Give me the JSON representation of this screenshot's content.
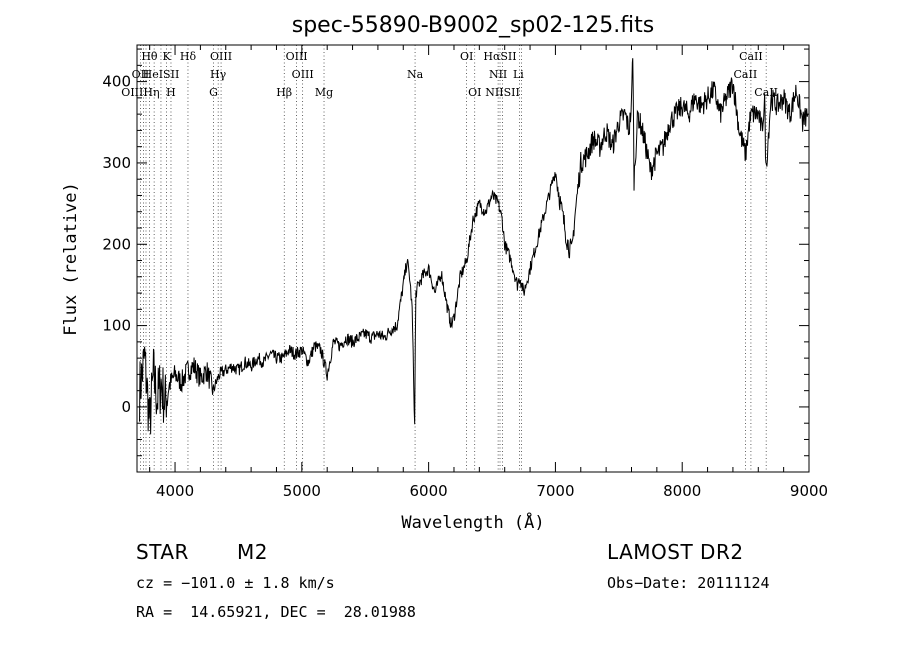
{
  "chart_data": {
    "type": "line",
    "title": "spec-55890-B9002_sp02-125.fits",
    "xlabel": "Wavelength (Å)",
    "ylabel": "Flux (relative)",
    "xlim": [
      3700,
      9000
    ],
    "ylim": [
      -80,
      445
    ],
    "xticks": [
      4000,
      5000,
      6000,
      7000,
      8000,
      9000
    ],
    "yticks": [
      0,
      100,
      200,
      300,
      400
    ],
    "grid": false,
    "series": [
      {
        "color": "#000000",
        "x": [
          3720,
          3760,
          3800,
          3830,
          3860,
          3890,
          3920,
          3950,
          4000,
          4050,
          4100,
          4150,
          4200,
          4250,
          4300,
          4350,
          4400,
          4450,
          4500,
          4550,
          4600,
          4650,
          4700,
          4750,
          4800,
          4850,
          4900,
          4950,
          5000,
          5050,
          5100,
          5150,
          5200,
          5250,
          5300,
          5350,
          5400,
          5450,
          5500,
          5550,
          5600,
          5650,
          5700,
          5750,
          5800,
          5830,
          5850,
          5870,
          5890,
          5895,
          5900,
          5920,
          5950,
          6000,
          6050,
          6100,
          6150,
          6180,
          6200,
          6250,
          6300,
          6350,
          6400,
          6450,
          6500,
          6550,
          6580,
          6600,
          6650,
          6700,
          6720,
          6750,
          6800,
          6850,
          6900,
          6950,
          7000,
          7050,
          7100,
          7130,
          7150,
          7200,
          7250,
          7300,
          7350,
          7400,
          7450,
          7500,
          7550,
          7580,
          7600,
          7610,
          7620,
          7650,
          7700,
          7750,
          7800,
          7850,
          7900,
          7950,
          8000,
          8050,
          8100,
          8150,
          8200,
          8250,
          8300,
          8350,
          8400,
          8450,
          8500,
          8530,
          8550,
          8600,
          8630,
          8650,
          8660,
          8700,
          8750,
          8800,
          8850,
          8900,
          8950,
          8990
        ],
        "y": [
          20,
          60,
          -20,
          40,
          10,
          30,
          5,
          25,
          40,
          30,
          45,
          50,
          35,
          45,
          20,
          40,
          45,
          50,
          45,
          55,
          50,
          60,
          55,
          65,
          60,
          60,
          70,
          65,
          70,
          55,
          75,
          70,
          40,
          80,
          75,
          85,
          80,
          85,
          90,
          85,
          90,
          85,
          95,
          100,
          150,
          180,
          160,
          120,
          -25,
          80,
          140,
          150,
          160,
          170,
          140,
          165,
          120,
          100,
          110,
          160,
          180,
          230,
          250,
          240,
          260,
          250,
          230,
          200,
          180,
          150,
          160,
          140,
          170,
          200,
          230,
          260,
          290,
          240,
          200,
          190,
          230,
          300,
          310,
          330,
          320,
          340,
          320,
          350,
          360,
          340,
          370,
          440,
          280,
          360,
          330,
          290,
          310,
          320,
          350,
          360,
          370,
          360,
          380,
          370,
          380,
          390,
          360,
          380,
          400,
          340,
          310,
          350,
          360,
          360,
          340,
          380,
          290,
          380,
          370,
          380,
          360,
          390,
          350,
          360
        ]
      }
    ],
    "annotations": [
      {
        "label": "Hθ",
        "wl": 3798,
        "row": 1
      },
      {
        "label": "K",
        "wl": 3934,
        "row": 1
      },
      {
        "label": "Hδ",
        "wl": 4102,
        "row": 1
      },
      {
        "label": "OIII",
        "wl": 4363,
        "row": 1
      },
      {
        "label": "OIII",
        "wl": 4959,
        "row": 1
      },
      {
        "label": "OI",
        "wl": 6300,
        "row": 1
      },
      {
        "label": "HαSII",
        "wl": 6563,
        "row": 1
      },
      {
        "label": "CaII",
        "wl": 8542,
        "row": 1
      },
      {
        "label": "OII",
        "wl": 3727,
        "row": 2
      },
      {
        "label": "HeISII",
        "wl": 3889,
        "row": 2
      },
      {
        "label": "Hγ",
        "wl": 4340,
        "row": 2
      },
      {
        "label": "OIII",
        "wl": 5007,
        "row": 2
      },
      {
        "label": "Na",
        "wl": 5893,
        "row": 2
      },
      {
        "label": "NII",
        "wl": 6548,
        "row": 2
      },
      {
        "label": "Li",
        "wl": 6708,
        "row": 2
      },
      {
        "label": "CaII",
        "wl": 8498,
        "row": 2
      },
      {
        "label": "OIIIHη",
        "wl": 3727,
        "row": 3
      },
      {
        "label": "H",
        "wl": 3968,
        "row": 3
      },
      {
        "label": "G",
        "wl": 4304,
        "row": 3
      },
      {
        "label": "Hβ",
        "wl": 4861,
        "row": 3
      },
      {
        "label": "Mg",
        "wl": 5175,
        "row": 3
      },
      {
        "label": "OI",
        "wl": 6364,
        "row": 3
      },
      {
        "label": "NIISII",
        "wl": 6583,
        "row": 3
      },
      {
        "label": "CaII",
        "wl": 8662,
        "row": 3
      }
    ],
    "marker_lines": [
      3727,
      3750,
      3771,
      3798,
      3835,
      3889,
      3934,
      3968,
      4102,
      4304,
      4340,
      4363,
      4861,
      4959,
      5007,
      5175,
      5893,
      6300,
      6364,
      6548,
      6563,
      6583,
      6716,
      6731,
      8498,
      8542,
      8662
    ]
  },
  "info": {
    "object_class": "STAR",
    "subclass": "M2",
    "survey": "LAMOST DR2",
    "cz": "cz = −101.0 ± 1.8 km/s",
    "obs_date": "Obs−Date: 20111124",
    "coords": "RA =  14.65921, DEC =  28.01988"
  }
}
